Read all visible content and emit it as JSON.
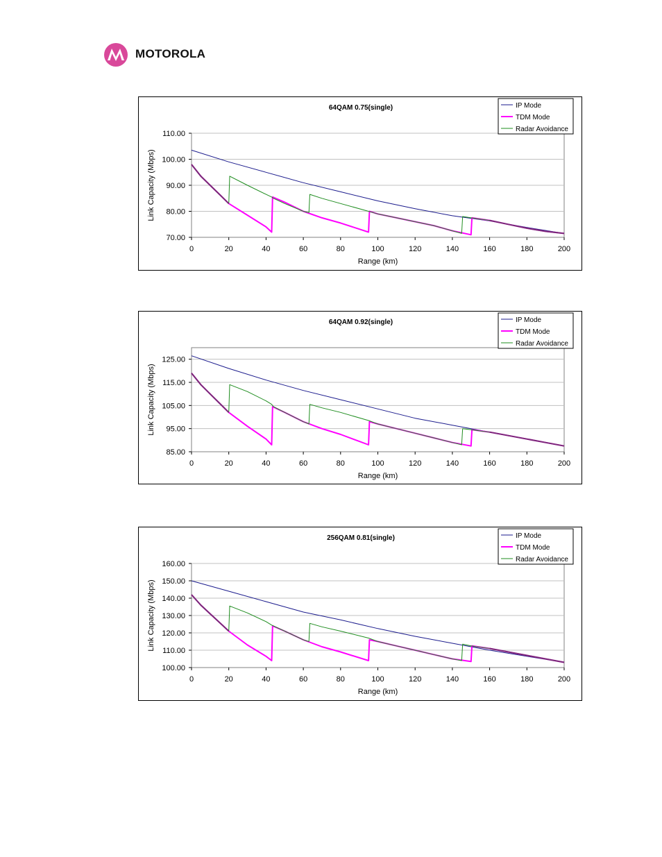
{
  "header": {
    "brand": "MOTOROLA",
    "logo_icon": "motorola-batwing-logo-icon",
    "logo_color": "#d9489a"
  },
  "colors": {
    "ip": "#1a1a8c",
    "tdm": "#ff00ff",
    "radar": "#1e8c1e",
    "overlap": "#7a2a78",
    "grid": "#c0c0c0"
  },
  "chart_data": [
    {
      "type": "line",
      "title": "64QAM 0.75(single)",
      "xlabel": "Range (km)",
      "ylabel": "Link Capacity (Mbps)",
      "xlim": [
        0,
        200
      ],
      "ylim": [
        70,
        110
      ],
      "xticks": [
        "0",
        "20",
        "40",
        "60",
        "80",
        "100",
        "120",
        "140",
        "160",
        "180",
        "200"
      ],
      "yticks": [
        "70.00",
        "80.00",
        "90.00",
        "100.00",
        "110.00"
      ],
      "grid": "horizontal",
      "legend_position": "top-right",
      "series": [
        {
          "name": "IP Mode",
          "x": [
            0,
            20,
            40,
            60,
            80,
            100,
            120,
            140,
            160,
            180,
            200
          ],
          "values": [
            103.5,
            99.0,
            95.0,
            91.0,
            87.5,
            84.0,
            81.0,
            78.3,
            76.3,
            73.8,
            71.5
          ]
        },
        {
          "name": "TDM Mode",
          "x": [
            0,
            5,
            10,
            15,
            20,
            30,
            40,
            43,
            43.5,
            50,
            60,
            70,
            80,
            95,
            95.5,
            100,
            110,
            120,
            130,
            140,
            150,
            150.5,
            160,
            170,
            180,
            190,
            200
          ],
          "values": [
            98.0,
            93.5,
            90.0,
            86.5,
            83.0,
            78.5,
            74.0,
            72.0,
            85.5,
            83.5,
            80.0,
            77.5,
            75.5,
            72.0,
            80.0,
            79.0,
            77.5,
            76.0,
            74.5,
            72.5,
            71.0,
            77.5,
            76.5,
            75.0,
            73.5,
            72.3,
            71.5
          ]
        },
        {
          "name": "Radar Avoidance",
          "x": [
            0,
            5,
            10,
            15,
            20,
            20.5,
            30,
            40,
            43,
            44,
            50,
            60,
            63,
            63.5,
            70,
            80,
            95,
            100,
            110,
            120,
            130,
            140,
            145,
            145.5,
            150,
            160,
            170,
            180,
            190,
            200
          ],
          "values": [
            98.0,
            93.5,
            90.0,
            86.5,
            83.0,
            93.5,
            90.0,
            86.5,
            85.5,
            85.0,
            83.0,
            80.0,
            79.5,
            86.5,
            85.0,
            83.0,
            80.0,
            79.0,
            77.5,
            76.0,
            74.5,
            72.5,
            71.5,
            78.0,
            77.5,
            76.5,
            75.0,
            73.5,
            72.3,
            71.5
          ]
        }
      ]
    },
    {
      "type": "line",
      "title": "64QAM 0.92(single)",
      "xlabel": "Range (km)",
      "ylabel": "Link Capacity (Mbps)",
      "xlim": [
        0,
        200
      ],
      "ylim": [
        85,
        130
      ],
      "xticks": [
        "0",
        "20",
        "40",
        "60",
        "80",
        "100",
        "120",
        "140",
        "160",
        "180",
        "200"
      ],
      "yticks": [
        "85.00",
        "95.00",
        "105.00",
        "115.00",
        "125.00"
      ],
      "grid": "horizontal",
      "legend_position": "top-right",
      "series": [
        {
          "name": "IP Mode",
          "x": [
            0,
            20,
            40,
            60,
            80,
            100,
            120,
            140,
            160,
            180,
            200
          ],
          "values": [
            126.5,
            121.0,
            116.0,
            111.5,
            107.5,
            103.5,
            99.5,
            96.5,
            93.5,
            90.5,
            87.5
          ]
        },
        {
          "name": "TDM Mode",
          "x": [
            0,
            5,
            10,
            15,
            20,
            30,
            40,
            43,
            43.5,
            50,
            60,
            70,
            80,
            95,
            95.5,
            100,
            110,
            120,
            130,
            140,
            150,
            150.5,
            160,
            170,
            180,
            190,
            200
          ],
          "values": [
            119.0,
            114.0,
            110.0,
            106.0,
            102.0,
            96.0,
            90.5,
            88.0,
            104.5,
            102.0,
            98.0,
            95.0,
            92.5,
            88.0,
            98.0,
            97.0,
            95.0,
            93.0,
            91.0,
            89.0,
            87.5,
            94.5,
            93.5,
            92.0,
            90.5,
            89.0,
            87.5
          ]
        },
        {
          "name": "Radar Avoidance",
          "x": [
            0,
            5,
            10,
            15,
            20,
            20.5,
            30,
            40,
            43,
            44,
            50,
            60,
            63,
            63.5,
            70,
            80,
            95,
            100,
            110,
            120,
            130,
            140,
            145,
            145.5,
            150,
            160,
            170,
            180,
            190,
            200
          ],
          "values": [
            119.0,
            114.0,
            110.0,
            106.0,
            102.0,
            114.0,
            111.0,
            107.0,
            105.5,
            104.5,
            102.0,
            98.0,
            97.0,
            105.5,
            104.0,
            102.0,
            98.5,
            97.0,
            95.0,
            93.0,
            91.0,
            89.0,
            88.0,
            95.0,
            94.5,
            93.5,
            92.0,
            90.5,
            89.0,
            87.5
          ]
        }
      ]
    },
    {
      "type": "line",
      "title": "256QAM 0.81(single)",
      "xlabel": "Range (km)",
      "ylabel": "Link Capacity (Mbps)",
      "xlim": [
        0,
        200
      ],
      "ylim": [
        100,
        160
      ],
      "xticks": [
        "0",
        "20",
        "40",
        "60",
        "80",
        "100",
        "120",
        "140",
        "160",
        "180",
        "200"
      ],
      "yticks": [
        "100.00",
        "110.00",
        "120.00",
        "130.00",
        "140.00",
        "150.00",
        "160.00"
      ],
      "grid": "horizontal",
      "legend_position": "top-right",
      "series": [
        {
          "name": "IP Mode",
          "x": [
            0,
            20,
            40,
            60,
            80,
            100,
            120,
            140,
            160,
            180,
            200
          ],
          "values": [
            150.0,
            144.0,
            138.0,
            132.0,
            127.5,
            122.5,
            118.0,
            114.0,
            110.0,
            106.5,
            103.0
          ]
        },
        {
          "name": "TDM Mode",
          "x": [
            0,
            5,
            10,
            15,
            20,
            30,
            40,
            43,
            43.5,
            50,
            60,
            70,
            80,
            95,
            95.5,
            100,
            110,
            120,
            130,
            140,
            150,
            150.5,
            160,
            170,
            180,
            190,
            200
          ],
          "values": [
            142.0,
            136.0,
            131.0,
            126.0,
            121.0,
            113.0,
            106.5,
            104.0,
            124.0,
            121.0,
            116.0,
            112.0,
            109.0,
            104.0,
            116.0,
            115.0,
            112.5,
            110.0,
            107.5,
            105.0,
            103.5,
            112.5,
            111.0,
            109.0,
            107.0,
            105.0,
            103.0
          ]
        },
        {
          "name": "Radar Avoidance",
          "x": [
            0,
            5,
            10,
            15,
            20,
            20.5,
            30,
            40,
            43,
            44,
            50,
            60,
            63,
            63.5,
            70,
            80,
            95,
            100,
            110,
            120,
            130,
            140,
            145,
            145.5,
            150,
            160,
            170,
            180,
            190,
            200
          ],
          "values": [
            142.0,
            136.0,
            131.0,
            126.0,
            121.0,
            135.5,
            131.5,
            126.5,
            124.5,
            124.0,
            121.0,
            116.0,
            115.0,
            125.5,
            123.5,
            121.0,
            117.0,
            115.0,
            112.5,
            110.0,
            107.5,
            105.0,
            104.0,
            113.5,
            112.5,
            111.0,
            109.0,
            107.0,
            105.0,
            103.0
          ]
        }
      ]
    }
  ]
}
